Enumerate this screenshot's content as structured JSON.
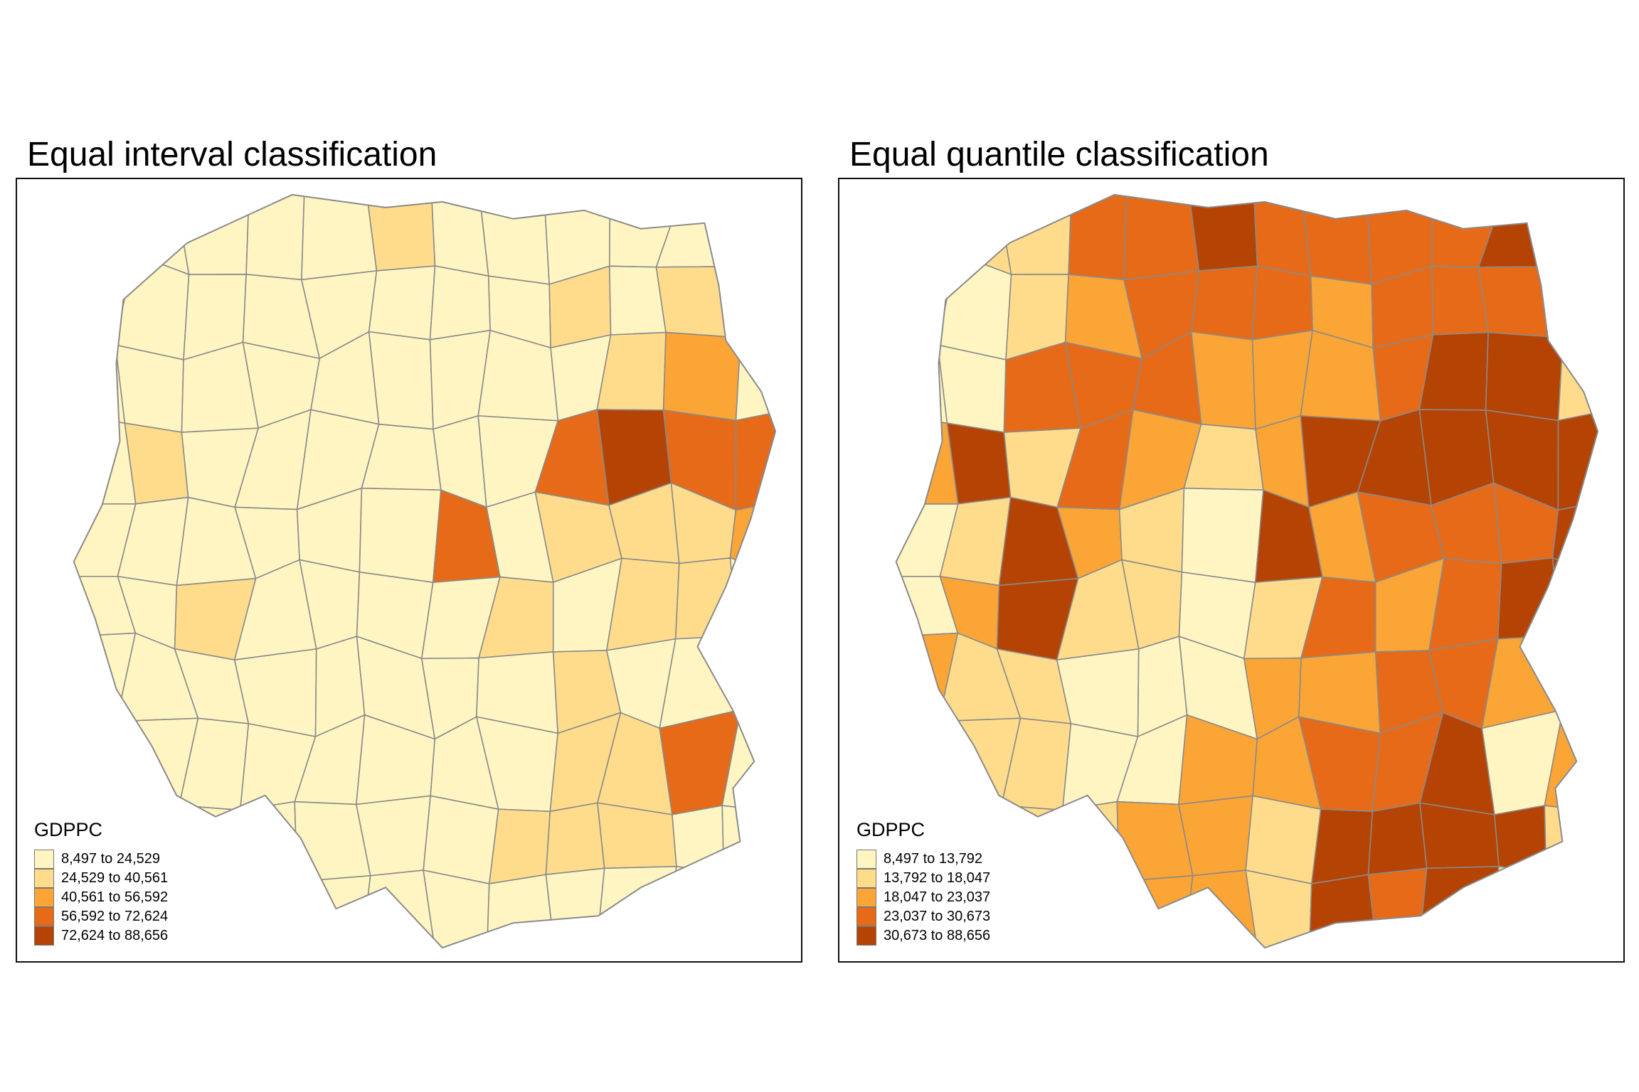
{
  "maps": [
    {
      "title": "Equal interval classification",
      "legend": {
        "title": "GDPPC",
        "classes": [
          {
            "label": "8,497 to 24,529",
            "color": "#FFF5C2"
          },
          {
            "label": "24,529 to 40,561",
            "color": "#FEDC8C"
          },
          {
            "label": "40,561 to 56,592",
            "color": "#FBA536"
          },
          {
            "label": "56,592 to 72,624",
            "color": "#E66A18"
          },
          {
            "label": "72,624 to 88,656",
            "color": "#B54304"
          }
        ]
      },
      "region_class_pattern": [
        0,
        0,
        0,
        0,
        0,
        1,
        0,
        0,
        0,
        0,
        0,
        0,
        0,
        0,
        0,
        0,
        0,
        0,
        0,
        0,
        1,
        0,
        1,
        1,
        0,
        0,
        0,
        0,
        0,
        0,
        0,
        0,
        0,
        1,
        2,
        0,
        0,
        1,
        0,
        0,
        0,
        0,
        0,
        0,
        3,
        4,
        3,
        3,
        0,
        0,
        0,
        0,
        0,
        0,
        3,
        0,
        1,
        1,
        1,
        2,
        0,
        0,
        1,
        0,
        0,
        0,
        0,
        1,
        0,
        1,
        1,
        0,
        0,
        0,
        0,
        0,
        0,
        0,
        0,
        0,
        1,
        0,
        0,
        0,
        0,
        0,
        0,
        0,
        0,
        0,
        0,
        0,
        1,
        1,
        3,
        0,
        0,
        0,
        0,
        0,
        0,
        0,
        0,
        1,
        1,
        1,
        0,
        0,
        0,
        0,
        0,
        0,
        0,
        0,
        0,
        0,
        0,
        0,
        0,
        0
      ]
    },
    {
      "title": "Equal quantile classification",
      "legend": {
        "title": "GDPPC",
        "classes": [
          {
            "label": "8,497 to 13,792",
            "color": "#FFF5C2"
          },
          {
            "label": "13,792 to 18,047",
            "color": "#FEDC8C"
          },
          {
            "label": "18,047 to 23,037",
            "color": "#FBA536"
          },
          {
            "label": "23,037 to 30,673",
            "color": "#E66A18"
          },
          {
            "label": "30,673 to 88,656",
            "color": "#B54304"
          }
        ]
      },
      "region_class_pattern": [
        0,
        1,
        1,
        3,
        3,
        4,
        3,
        3,
        3,
        3,
        4,
        3,
        0,
        0,
        1,
        2,
        3,
        3,
        3,
        2,
        3,
        3,
        3,
        4,
        0,
        0,
        3,
        3,
        3,
        2,
        2,
        2,
        3,
        4,
        4,
        1,
        2,
        4,
        1,
        3,
        2,
        1,
        2,
        4,
        4,
        4,
        4,
        4,
        0,
        1,
        4,
        2,
        1,
        0,
        4,
        2,
        3,
        3,
        3,
        4,
        0,
        2,
        4,
        1,
        1,
        0,
        1,
        3,
        2,
        3,
        4,
        4,
        2,
        1,
        1,
        0,
        0,
        0,
        2,
        2,
        3,
        3,
        2,
        2,
        0,
        1,
        1,
        0,
        0,
        2,
        2,
        3,
        3,
        4,
        0,
        2,
        0,
        0,
        1,
        1,
        2,
        2,
        1,
        4,
        4,
        4,
        4,
        1,
        0,
        1,
        1,
        1,
        2,
        2,
        1,
        4,
        3,
        4,
        1,
        1
      ]
    }
  ]
}
